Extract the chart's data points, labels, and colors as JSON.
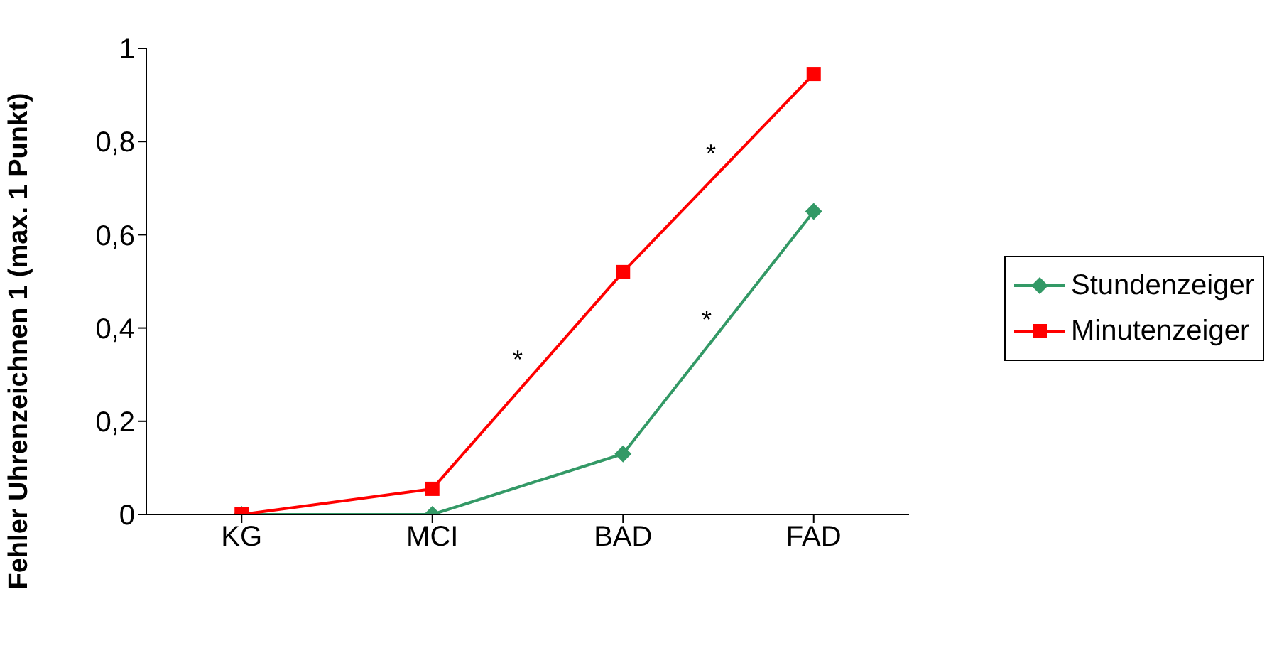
{
  "chart_data": {
    "type": "line",
    "ylabel": "Fehler Uhrenzeichnen 1 (max. 1 Punkt)",
    "categories": [
      "KG",
      "MCI",
      "BAD",
      "FAD"
    ],
    "series": [
      {
        "name": "Stundenzeiger",
        "color": "#339966",
        "values": [
          0,
          0,
          0.13,
          0.65
        ],
        "marker": "diamond"
      },
      {
        "name": "Minutenzeiger",
        "color": "#ff0000",
        "values": [
          0,
          0.055,
          0.52,
          0.945
        ],
        "marker": "square"
      }
    ],
    "ylim": [
      0,
      1
    ],
    "yticks": [
      0,
      {
        "value": 0.2,
        "label": "0,2"
      },
      {
        "value": 0.4,
        "label": "0,4"
      },
      {
        "value": 0.6,
        "label": "0,6"
      },
      {
        "value": 0.8,
        "label": "0,8"
      },
      1
    ],
    "legend": "right",
    "annotations": [
      "*",
      "*",
      "*"
    ]
  }
}
